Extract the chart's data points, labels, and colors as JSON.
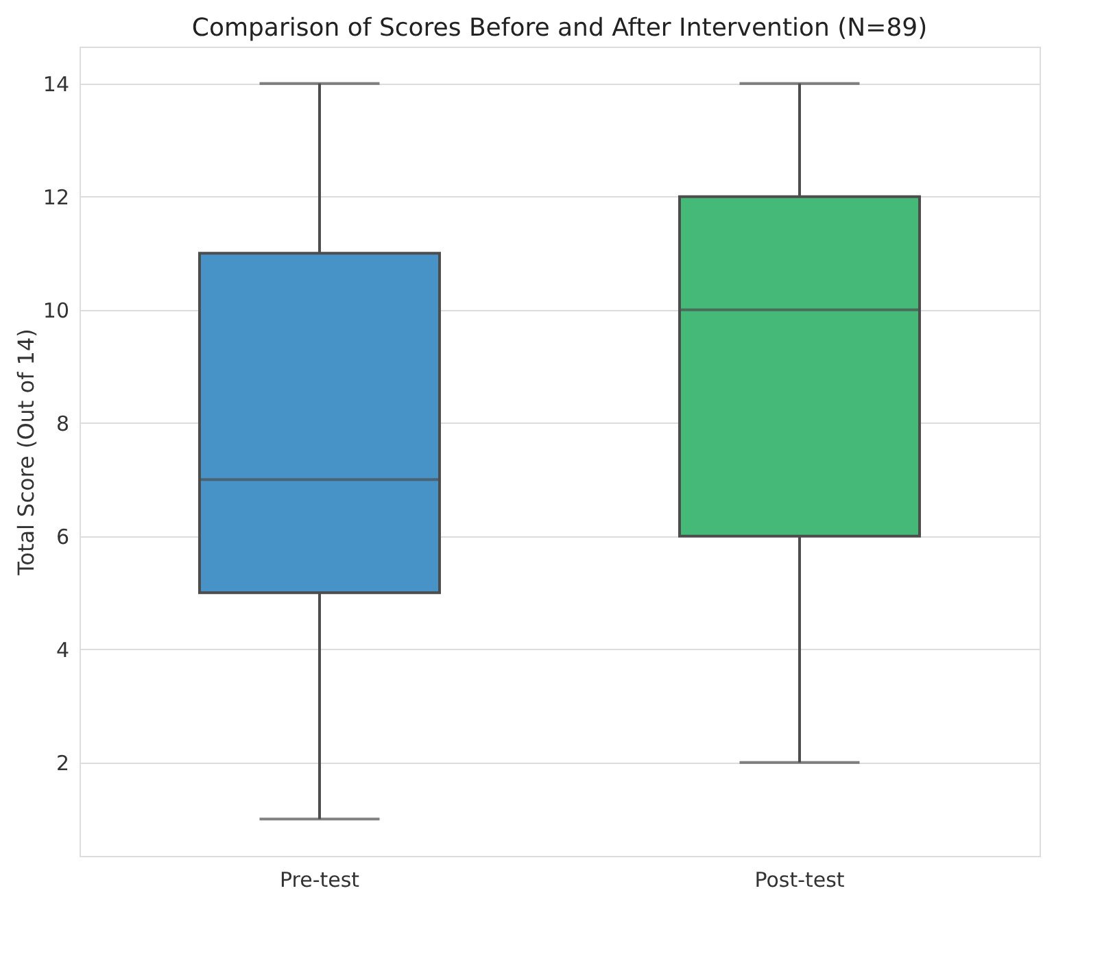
{
  "chart_data": {
    "type": "box",
    "title": "Comparison of Scores Before and After Intervention (N=89)",
    "ylabel": "Total Score (Out of 14)",
    "categories": [
      "Pre-test",
      "Post-test"
    ],
    "boxes": [
      {
        "low": 1,
        "q1": 5,
        "median": 7,
        "q3": 11,
        "high": 14
      },
      {
        "low": 2,
        "q1": 6,
        "median": 10,
        "q3": 12,
        "high": 14
      }
    ],
    "colors": [
      "#4793c8",
      "#44b978"
    ],
    "ylim": [
      0.35,
      14.65
    ],
    "yticks": [
      2,
      4,
      6,
      8,
      10,
      12,
      14
    ],
    "grid": "y"
  }
}
